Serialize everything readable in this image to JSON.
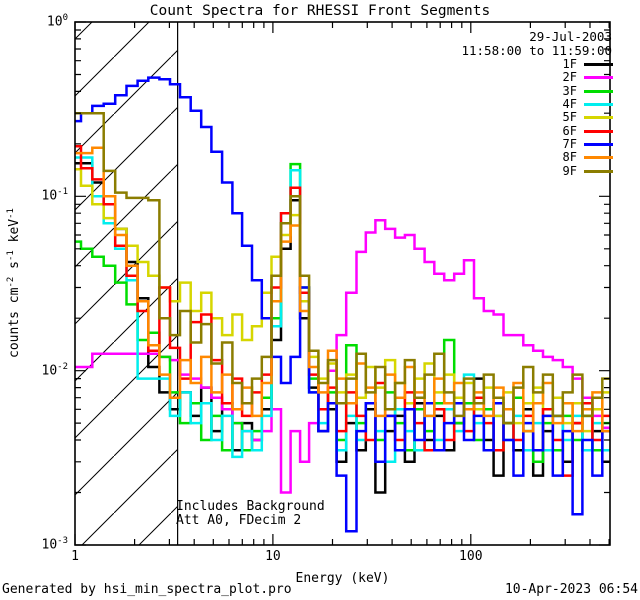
{
  "header": {
    "title": "Count Spectra for RHESSI Front Segments"
  },
  "info": {
    "date": "29-Jul-2003",
    "time_range": "11:58:00 to 11:59:00"
  },
  "annotations": {
    "line1": "Includes Background",
    "line2": "Att A0, FDecim 2"
  },
  "footer": {
    "left": "Generated by hsi_min_spectra_plot.pro",
    "right": "10-Apr-2023 06:54"
  },
  "chart_data": {
    "type": "line",
    "subtype": "histogram-step",
    "title": "Count Spectra for RHESSI Front Segments",
    "xlabel": "Energy (keV)",
    "ylabel": "counts cm^-2 s^-1 keV^-1",
    "xscale": "log",
    "yscale": "log",
    "xlim": [
      1,
      505
    ],
    "ylim": [
      0.001,
      1.0
    ],
    "grid": false,
    "legend_position": "top-right",
    "x_major_ticks": [
      1,
      10,
      100
    ],
    "x_tick_labels": [
      "1",
      "10",
      "100"
    ],
    "y_major_exponents": [
      0,
      -1,
      -2,
      -3
    ],
    "hatch_region_kev": [
      1,
      3.3
    ],
    "hatch_style": "diagonal-lines",
    "energy_kev": [
      1.0,
      1.15,
      1.3,
      1.5,
      1.7,
      1.95,
      2.2,
      2.5,
      2.85,
      3.2,
      3.6,
      4.1,
      4.6,
      5.2,
      5.9,
      6.6,
      7.4,
      8.3,
      9.3,
      10.4,
      11.6,
      13.0,
      14.5,
      16,
      18,
      20,
      22,
      25,
      28,
      31,
      35,
      39,
      44,
      49,
      55,
      62,
      69,
      78,
      87,
      98,
      110,
      123,
      138,
      155,
      174,
      195,
      219,
      245,
      275,
      309,
      346,
      388,
      436,
      489
    ],
    "series": [
      {
        "name": "1F",
        "color": "#000000",
        "values": [
          0.155,
          0.155,
          0.12,
          0.09,
          0.065,
          0.042,
          0.026,
          0.0105,
          0.0075,
          0.006,
          0.0075,
          0.0055,
          0.008,
          0.0045,
          0.0065,
          0.0035,
          0.005,
          0.004,
          0.006,
          0.015,
          0.05,
          0.095,
          0.02,
          0.008,
          0.0045,
          0.006,
          0.003,
          0.005,
          0.0035,
          0.006,
          0.002,
          0.0045,
          0.0055,
          0.003,
          0.0065,
          0.004,
          0.0055,
          0.0035,
          0.005,
          0.006,
          0.009,
          0.004,
          0.0025,
          0.005,
          0.0035,
          0.006,
          0.0025,
          0.0045,
          0.0055,
          0.003,
          0.005,
          0.0035,
          0.0045,
          0.003
        ]
      },
      {
        "name": "2F",
        "color": "#ff00ff",
        "values": [
          0.0105,
          0.0105,
          0.0125,
          0.0125,
          0.0125,
          0.0125,
          0.0125,
          0.0125,
          0.012,
          0.0115,
          0.0095,
          0.009,
          0.008,
          0.007,
          0.006,
          0.005,
          0.0045,
          0.004,
          0.0045,
          0.006,
          0.002,
          0.0045,
          0.003,
          0.005,
          0.006,
          0.01,
          0.016,
          0.028,
          0.048,
          0.062,
          0.073,
          0.065,
          0.058,
          0.06,
          0.05,
          0.042,
          0.036,
          0.033,
          0.036,
          0.043,
          0.026,
          0.022,
          0.021,
          0.016,
          0.016,
          0.014,
          0.013,
          0.012,
          0.0115,
          0.0105,
          0.009,
          0.007,
          0.0055,
          0.0047
        ]
      },
      {
        "name": "3F",
        "color": "#00dd00",
        "values": [
          0.055,
          0.05,
          0.045,
          0.04,
          0.032,
          0.024,
          0.015,
          0.0165,
          0.012,
          0.0075,
          0.005,
          0.0065,
          0.004,
          0.0055,
          0.0035,
          0.005,
          0.0035,
          0.0045,
          0.007,
          0.02,
          0.07,
          0.153,
          0.03,
          0.009,
          0.006,
          0.0075,
          0.004,
          0.014,
          0.005,
          0.0065,
          0.004,
          0.0075,
          0.005,
          0.0035,
          0.006,
          0.0045,
          0.0065,
          0.015,
          0.005,
          0.0065,
          0.004,
          0.006,
          0.0035,
          0.005,
          0.007,
          0.0045,
          0.003,
          0.005,
          0.0035,
          0.0055,
          0.004,
          0.0055,
          0.0035,
          0.005
        ]
      },
      {
        "name": "4F",
        "color": "#00eeee",
        "values": [
          0.167,
          0.167,
          0.1,
          0.07,
          0.05,
          0.033,
          0.009,
          0.009,
          0.009,
          0.0055,
          0.0075,
          0.005,
          0.0065,
          0.004,
          0.0055,
          0.0032,
          0.0045,
          0.0035,
          0.0055,
          0.018,
          0.08,
          0.141,
          0.025,
          0.0075,
          0.005,
          0.0065,
          0.0035,
          0.0055,
          0.004,
          0.0065,
          0.0045,
          0.003,
          0.006,
          0.0045,
          0.0035,
          0.0055,
          0.004,
          0.006,
          0.0045,
          0.0095,
          0.005,
          0.0035,
          0.0055,
          0.004,
          0.0055,
          0.0035,
          0.005,
          0.0035,
          0.0055,
          0.004,
          0.0055,
          0.0035,
          0.005,
          0.0035
        ]
      },
      {
        "name": "5F",
        "color": "#d6d600",
        "values": [
          0.143,
          0.115,
          0.09,
          0.075,
          0.065,
          0.052,
          0.042,
          0.035,
          0.03,
          0.025,
          0.032,
          0.022,
          0.028,
          0.02,
          0.016,
          0.021,
          0.015,
          0.018,
          0.028,
          0.045,
          0.06,
          0.078,
          0.025,
          0.012,
          0.009,
          0.011,
          0.0075,
          0.0095,
          0.007,
          0.0105,
          0.008,
          0.0115,
          0.0085,
          0.0065,
          0.009,
          0.011,
          0.0075,
          0.0095,
          0.007,
          0.0085,
          0.006,
          0.008,
          0.0055,
          0.0075,
          0.005,
          0.0065,
          0.008,
          0.0055,
          0.007,
          0.005,
          0.0065,
          0.0045,
          0.006,
          0.0075
        ]
      },
      {
        "name": "6F",
        "color": "#ff0000",
        "values": [
          0.194,
          0.145,
          0.125,
          0.09,
          0.052,
          0.035,
          0.022,
          0.013,
          0.03,
          0.0135,
          0.009,
          0.019,
          0.021,
          0.0115,
          0.0065,
          0.009,
          0.0055,
          0.0075,
          0.0095,
          0.03,
          0.08,
          0.112,
          0.028,
          0.0095,
          0.006,
          0.008,
          0.0045,
          0.0075,
          0.0055,
          0.004,
          0.0085,
          0.0055,
          0.004,
          0.0075,
          0.005,
          0.0035,
          0.006,
          0.004,
          0.0065,
          0.0045,
          0.007,
          0.005,
          0.0035,
          0.006,
          0.004,
          0.0055,
          0.0035,
          0.006,
          0.004,
          0.0025,
          0.005,
          0.0065,
          0.004,
          0.0055
        ]
      },
      {
        "name": "7F",
        "color": "#0000ff",
        "values": [
          0.27,
          0.3,
          0.33,
          0.34,
          0.38,
          0.43,
          0.46,
          0.48,
          0.47,
          0.44,
          0.37,
          0.31,
          0.25,
          0.18,
          0.12,
          0.08,
          0.052,
          0.033,
          0.02,
          0.012,
          0.0085,
          0.012,
          0.03,
          0.0075,
          0.0045,
          0.0065,
          0.0025,
          0.0012,
          0.0045,
          0.0065,
          0.003,
          0.0055,
          0.0035,
          0.006,
          0.004,
          0.0065,
          0.0035,
          0.005,
          0.0065,
          0.004,
          0.0055,
          0.0035,
          0.0065,
          0.004,
          0.0025,
          0.005,
          0.0035,
          0.0055,
          0.0025,
          0.0045,
          0.0015,
          0.004,
          0.0025,
          0.0045
        ]
      },
      {
        "name": "8F",
        "color": "#ff8800",
        "values": [
          0.177,
          0.177,
          0.19,
          0.1,
          0.06,
          0.04,
          0.025,
          0.014,
          0.0095,
          0.007,
          0.0115,
          0.0085,
          0.012,
          0.0075,
          0.0095,
          0.006,
          0.008,
          0.0055,
          0.0085,
          0.025,
          0.055,
          0.068,
          0.022,
          0.0105,
          0.0075,
          0.013,
          0.009,
          0.0065,
          0.011,
          0.008,
          0.0055,
          0.0095,
          0.007,
          0.0105,
          0.0075,
          0.0055,
          0.009,
          0.0065,
          0.0085,
          0.006,
          0.0075,
          0.0055,
          0.008,
          0.006,
          0.0085,
          0.0045,
          0.0065,
          0.0085,
          0.005,
          0.0065,
          0.0045,
          0.006,
          0.0075,
          0.0045
        ]
      },
      {
        "name": "9F",
        "color": "#8b7d00",
        "values": [
          0.3,
          0.3,
          0.3,
          0.14,
          0.105,
          0.098,
          0.098,
          0.095,
          0.02,
          0.016,
          0.022,
          0.0145,
          0.0185,
          0.011,
          0.0145,
          0.0085,
          0.0065,
          0.009,
          0.012,
          0.035,
          0.07,
          0.1,
          0.035,
          0.013,
          0.0085,
          0.0115,
          0.0065,
          0.009,
          0.0125,
          0.0075,
          0.0105,
          0.006,
          0.0085,
          0.0115,
          0.007,
          0.0095,
          0.0125,
          0.0075,
          0.0055,
          0.009,
          0.0065,
          0.0095,
          0.007,
          0.005,
          0.008,
          0.0105,
          0.0075,
          0.0095,
          0.0055,
          0.0075,
          0.0095,
          0.0055,
          0.007,
          0.009
        ]
      }
    ]
  }
}
